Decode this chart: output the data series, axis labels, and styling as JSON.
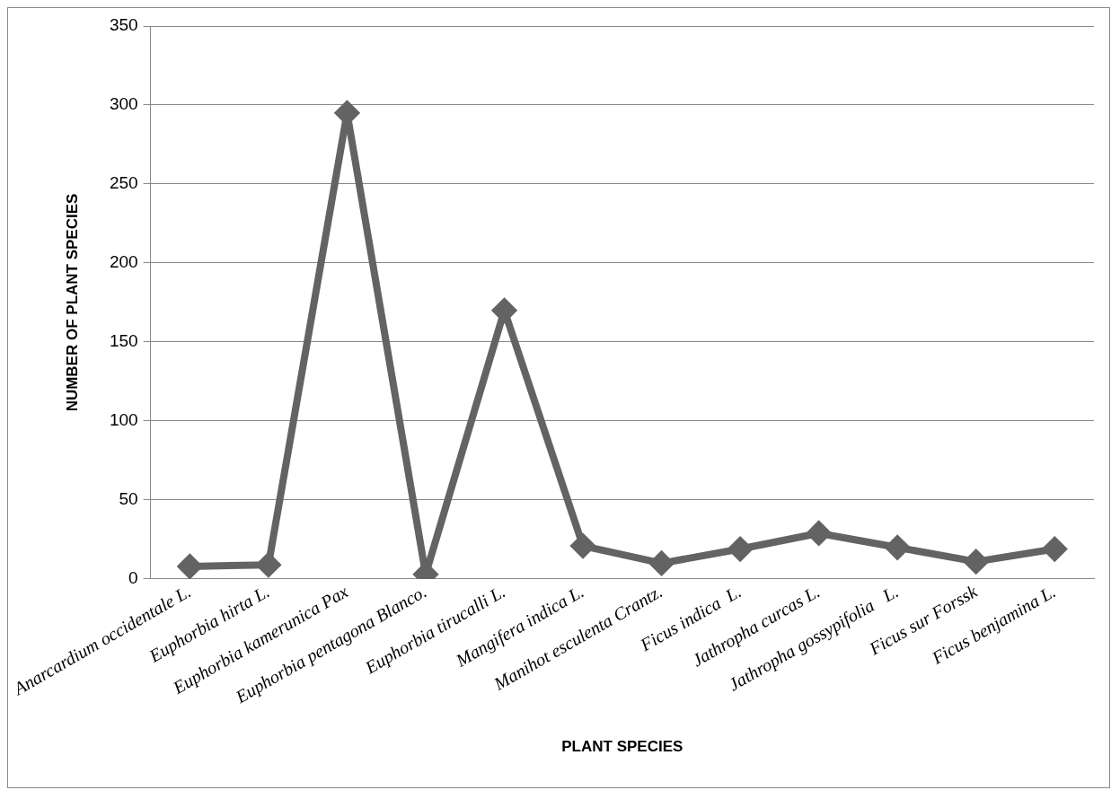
{
  "chart_data": {
    "type": "line",
    "xlabel": "PLANT SPECIES",
    "ylabel": "NUMBER OF PLANT SPECIES",
    "categories": [
      "Anarcardium occidentale L.",
      "Euphorbia hirta L.",
      "Euphorbia kamerunica Pax",
      "Euphorbia pentagona Blanco.",
      "Euphorbia tirucalli L.",
      "Mangifera indica L.",
      "Manihot esculenta Crantz.",
      "Ficus indica  L.",
      "Jathropha curcas L.",
      "Jathropha gossypifolia   L.",
      "Ficus sur Forssk",
      "Ficus benjamina L."
    ],
    "series": [
      {
        "color": "#636363",
        "values": [
          8,
          9,
          295,
          3,
          170,
          21,
          10,
          19,
          29,
          20,
          11,
          19
        ]
      }
    ],
    "ylim": [
      0,
      350
    ],
    "yticks": [
      0,
      50,
      100,
      150,
      200,
      250,
      300,
      350
    ],
    "grid": "y",
    "marker": "diamond",
    "line_style": "solid"
  }
}
